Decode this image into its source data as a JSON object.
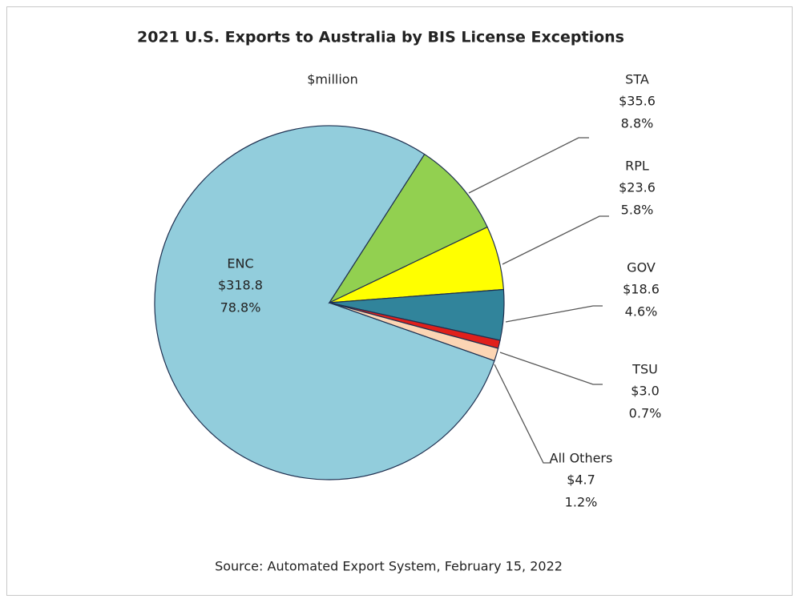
{
  "chart_data": {
    "type": "pie",
    "title": "2021 U.S. Exports to Australia  by BIS License Exceptions",
    "subtitle": "$million",
    "source": "Source: Automated Export System, February 15, 2022",
    "categories": [
      "ENC",
      "STA",
      "RPL",
      "GOV",
      "TSU",
      "All Others"
    ],
    "values": [
      318.8,
      35.6,
      23.6,
      18.6,
      3.0,
      4.7
    ],
    "value_labels": [
      "$318.8",
      "$35.6",
      "$23.6",
      "$18.6",
      "$3.0",
      "$4.7"
    ],
    "percentages": [
      78.8,
      8.8,
      5.8,
      4.6,
      0.7,
      1.2
    ],
    "percentage_labels": [
      "78.8%",
      "8.8%",
      "5.8%",
      "4.6%",
      "0.7%",
      "1.2%"
    ],
    "colors": [
      "#92cddc",
      "#92d050",
      "#ffff00",
      "#31849b",
      "#e0201b",
      "#fcd5b4"
    ]
  }
}
